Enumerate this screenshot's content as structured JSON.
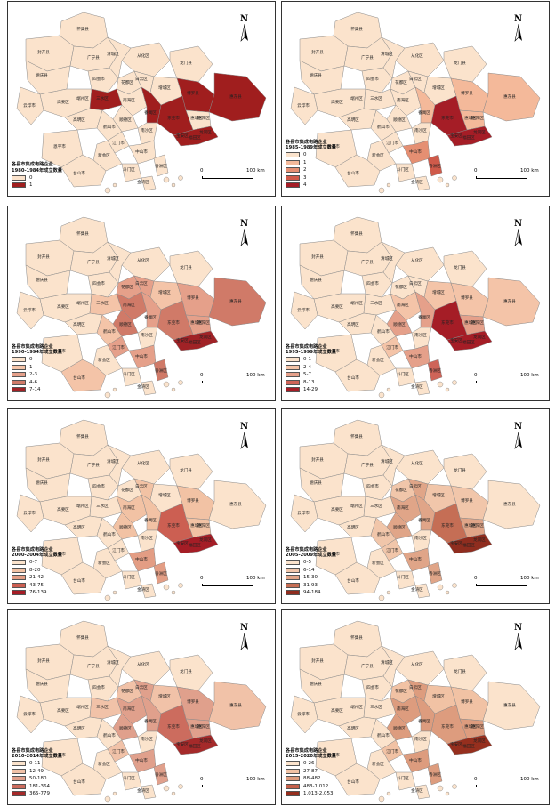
{
  "north_label": "N",
  "scale": {
    "zero": "0",
    "distance": "100 km"
  },
  "place_labels": [
    "怀集县",
    "封开县",
    "广宁县",
    "德庆县",
    "四会市",
    "龙门县",
    "从化区",
    "清城区",
    "增城区",
    "博罗县",
    "惠阳区",
    "惠城区",
    "东莞市",
    "南沙区",
    "番禺区",
    "中山市",
    "斗门区",
    "台山市",
    "恩平市",
    "新会区",
    "鹤山市",
    "高明区",
    "三水区",
    "顺德区",
    "江门市",
    "香洲区",
    "金湾区",
    "高要区",
    "端州区",
    "云浮市",
    "宝安区",
    "福田区",
    "龙岗区",
    "南海区",
    "花都区",
    "白云区",
    "惠东县"
  ],
  "panels": [
    {
      "legend_title": [
        "各县市集成电路企业",
        "1980-1984年成立数量"
      ],
      "classes": [
        {
          "label": "0",
          "color": "#fbe3cc"
        },
        {
          "label": "1",
          "color": "#a01e1e"
        }
      ]
    },
    {
      "legend_title": [
        "各县市集成电路企业",
        "1985-1989年成立数量"
      ],
      "classes": [
        {
          "label": "0",
          "color": "#fbe3cc"
        },
        {
          "label": "1",
          "color": "#f4b99a"
        },
        {
          "label": "2",
          "color": "#e58f72"
        },
        {
          "label": "3",
          "color": "#cf5a4a"
        },
        {
          "label": "4",
          "color": "#a51d26"
        }
      ]
    },
    {
      "legend_title": [
        "各县市集成电路企业",
        "1990-1994年成立数量"
      ],
      "classes": [
        {
          "label": "0",
          "color": "#fbe3cc"
        },
        {
          "label": "1",
          "color": "#f4c4a8"
        },
        {
          "label": "2-3",
          "color": "#e5a08a"
        },
        {
          "label": "4-6",
          "color": "#d07a68"
        },
        {
          "label": "7-14",
          "color": "#a02226"
        }
      ]
    },
    {
      "legend_title": [
        "各县市集成电路企业",
        "1995-1999年成立数量"
      ],
      "classes": [
        {
          "label": "0-1",
          "color": "#fbe3cc"
        },
        {
          "label": "2-4",
          "color": "#f4c4a8"
        },
        {
          "label": "5-7",
          "color": "#e5a08a"
        },
        {
          "label": "8-13",
          "color": "#cf6458"
        },
        {
          "label": "14-29",
          "color": "#a51d26"
        }
      ]
    },
    {
      "legend_title": [
        "各县市集成电路企业",
        "2000-2004年成立数量"
      ],
      "classes": [
        {
          "label": "0-7",
          "color": "#fbe3cc"
        },
        {
          "label": "8-20",
          "color": "#f2c2a4"
        },
        {
          "label": "21-42",
          "color": "#e39d84"
        },
        {
          "label": "43-75",
          "color": "#cc5f52"
        },
        {
          "label": "76-139",
          "color": "#a51d26"
        }
      ]
    },
    {
      "legend_title": [
        "各县市集成电路企业",
        "2005-2009年成立数量"
      ],
      "classes": [
        {
          "label": "0-5",
          "color": "#fbe3cc"
        },
        {
          "label": "6-14",
          "color": "#f1c6aa"
        },
        {
          "label": "15-30",
          "color": "#e0a588"
        },
        {
          "label": "31-93",
          "color": "#c56e55"
        },
        {
          "label": "94-184",
          "color": "#8f2d1f"
        }
      ]
    },
    {
      "legend_title": [
        "各县市集成电路企业",
        "2010-2014年成立数量"
      ],
      "classes": [
        {
          "label": "0-11",
          "color": "#fbe3cc"
        },
        {
          "label": "12-49",
          "color": "#f1c2a8"
        },
        {
          "label": "50-180",
          "color": "#e0a08c"
        },
        {
          "label": "181-364",
          "color": "#cc6c5e"
        },
        {
          "label": "365-779",
          "color": "#a52a2a"
        }
      ]
    },
    {
      "legend_title": [
        "各县市集成电路企业",
        "2015-2020年成立数量"
      ],
      "classes": [
        {
          "label": "0-26",
          "color": "#fbe3cc"
        },
        {
          "label": "27-87",
          "color": "#f1c2a4"
        },
        {
          "label": "88-482",
          "color": "#dd9c7e"
        },
        {
          "label": "483-1,012",
          "color": "#c4604a"
        },
        {
          "label": "1,013-2,053",
          "color": "#962f1e"
        }
      ]
    }
  ]
}
